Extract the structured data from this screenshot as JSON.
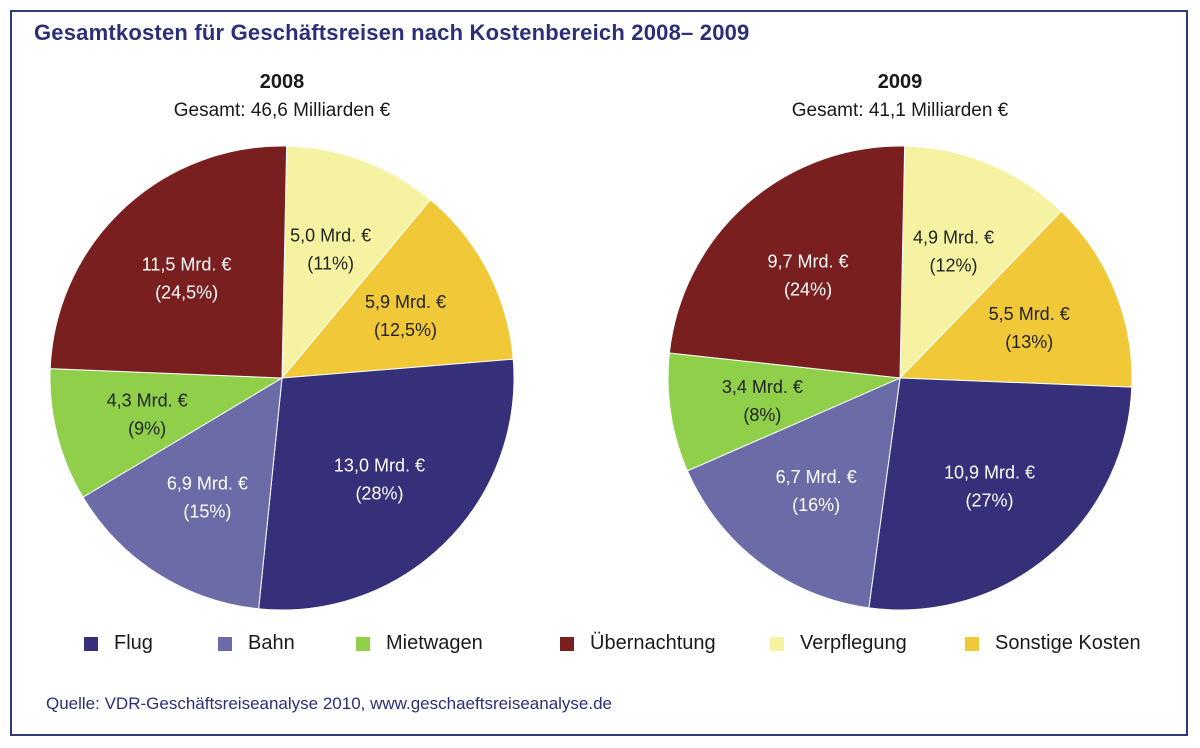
{
  "title": "Gesamtkosten für Geschäftsreisen nach Kostenbereich 2008– 2009",
  "source": "Quelle: VDR-Geschäftsreiseanalyse 2010, www.geschaeftsreiseanalyse.de",
  "colors": {
    "Flug": "#353079",
    "Bahn": "#6b6ba8",
    "Mietwagen": "#8fcf4a",
    "Übernachtung": "#7a1f1f",
    "Verpflegung": "#f5f3a2",
    "Sonstige Kosten": "#f1c837"
  },
  "chart_data": [
    {
      "type": "pie",
      "title": "2008",
      "subtitle": "Gesamt: 46,6 Milliarden €",
      "slices": [
        {
          "name": "Flug",
          "value": 13.0,
          "label": "13,0 Mrd. €",
          "pct": "(28%)"
        },
        {
          "name": "Bahn",
          "value": 6.9,
          "label": "6,9 Mrd. €",
          "pct": "(15%)"
        },
        {
          "name": "Mietwagen",
          "value": 4.3,
          "label": "4,3 Mrd. €",
          "pct": "(9%)"
        },
        {
          "name": "Übernachtung",
          "value": 11.5,
          "label": "11,5 Mrd. €",
          "pct": "(24,5%)"
        },
        {
          "name": "Verpflegung",
          "value": 5.0,
          "label": "5,0 Mrd. €",
          "pct": "(11%)"
        },
        {
          "name": "Sonstige Kosten",
          "value": 5.9,
          "label": "5,9 Mrd. €",
          "pct": "(12,5%)"
        }
      ]
    },
    {
      "type": "pie",
      "title": "2009",
      "subtitle": "Gesamt: 41,1 Milliarden €",
      "slices": [
        {
          "name": "Flug",
          "value": 10.9,
          "label": "10,9 Mrd. €",
          "pct": "(27%)"
        },
        {
          "name": "Bahn",
          "value": 6.7,
          "label": "6,7 Mrd. €",
          "pct": "(16%)"
        },
        {
          "name": "Mietwagen",
          "value": 3.4,
          "label": "3,4 Mrd. €",
          "pct": "(8%)"
        },
        {
          "name": "Übernachtung",
          "value": 9.7,
          "label": "9,7 Mrd. €",
          "pct": "(24%)"
        },
        {
          "name": "Verpflegung",
          "value": 4.9,
          "label": "4,9 Mrd. €",
          "pct": "(12%)"
        },
        {
          "name": "Sonstige Kosten",
          "value": 5.5,
          "label": "5,5 Mrd. €",
          "pct": "(13%)"
        }
      ]
    }
  ],
  "legend": [
    "Flug",
    "Bahn",
    "Mietwagen",
    "Übernachtung",
    "Verpflegung",
    "Sonstige Kosten"
  ]
}
